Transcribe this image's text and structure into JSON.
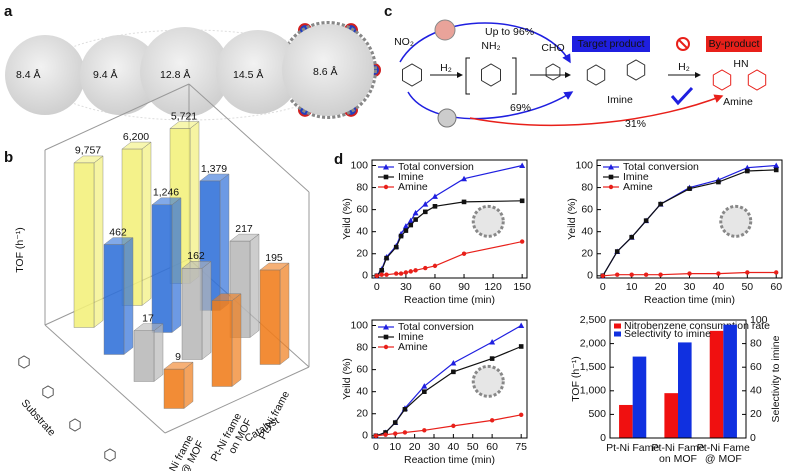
{
  "panel_labels": [
    "a",
    "b",
    "c",
    "d"
  ],
  "panel_a": {
    "sizes": [
      "8.4 Å",
      "9.4 Å",
      "12.8 Å",
      "14.5 Å",
      "8.6 Å"
    ]
  },
  "panel_c": {
    "yield_top": "Up to 96%",
    "target_label": "Target product",
    "byproduct_label": "By-product",
    "reagent_1": "H₂",
    "reagent_2": "H₂",
    "imine": "Imine",
    "amine": "Amine",
    "yield_imine": "69%",
    "yield_amine": "31%",
    "nitro": "NO₂",
    "amino": "NH₂",
    "aldehyde": "CHO",
    "amine_group": "HN"
  },
  "chart_data": [
    {
      "type": "bar3d",
      "ylabel": "TOF (h⁻¹)",
      "xlabel": "Catalyst",
      "zlabel": "Substrate",
      "log_scale": true,
      "ylim": [
        1,
        10000
      ],
      "categories": [
        [
          "Pt-Ni frame",
          "@ MOF"
        ],
        [
          "Pt-Ni frame",
          "on MOF"
        ],
        [
          "Pt-Ni frame"
        ]
      ],
      "category_highlight_color": "#e8201a",
      "series": [
        {
          "color": "#f2f07a",
          "label_color": "#b8b83a",
          "values": [
            9757,
            6200,
            5721
          ],
          "value_labels": [
            "9,757",
            "6,200",
            "5,721"
          ]
        },
        {
          "color": "#2f6fd8",
          "label_color": "#2a9be0",
          "values": [
            462,
            1246,
            1379
          ],
          "value_labels": [
            "462",
            "1,246",
            "1,379"
          ]
        },
        {
          "color": "#b8b8b8",
          "label_color": "#111111",
          "values": [
            17,
            162,
            217
          ]
        },
        {
          "color": "#f07c1a",
          "label_color": "#f07c1a",
          "values": [
            9,
            120,
            195
          ],
          "value_labels": [
            "9",
            null,
            "195"
          ]
        }
      ]
    },
    {
      "type": "line",
      "xlabel": "Reaction time (min)",
      "ylabel": "Yeild (%)",
      "x": [
        0,
        5,
        10,
        20,
        25,
        30,
        35,
        40,
        50,
        60,
        90,
        150
      ],
      "xlim": [
        -5,
        155
      ],
      "xticks": [
        0,
        30,
        60,
        90,
        120,
        150
      ],
      "ylim": [
        -2,
        105
      ],
      "yticks": [
        0,
        20,
        40,
        60,
        80,
        100
      ],
      "last_xtick_color": "#e8201a",
      "series": [
        {
          "name": "Total conversion",
          "color": "#1f1fe0",
          "marker": "triangle",
          "values": [
            0,
            6,
            17,
            27,
            38,
            45,
            50,
            57,
            65,
            72,
            88,
            100
          ]
        },
        {
          "name": "Imine",
          "color": "#111111",
          "marker": "square",
          "values": [
            0,
            5,
            16,
            26,
            36,
            41,
            46,
            51,
            58,
            63,
            67,
            68
          ]
        },
        {
          "name": "Amine",
          "color": "#e8201a",
          "marker": "circle",
          "values": [
            0,
            1,
            1,
            2,
            2,
            3,
            4,
            5,
            7,
            9,
            20,
            31
          ]
        }
      ]
    },
    {
      "type": "line",
      "xlabel": "Reaction time (min)",
      "ylabel": "Yeild (%)",
      "x": [
        0,
        5,
        10,
        15,
        20,
        30,
        40,
        50,
        60
      ],
      "xlim": [
        -2,
        62
      ],
      "xticks": [
        0,
        10,
        20,
        30,
        40,
        50,
        60
      ],
      "ylim": [
        -2,
        105
      ],
      "yticks": [
        0,
        20,
        40,
        60,
        80,
        100
      ],
      "last_xtick_color": "#e8201a",
      "series": [
        {
          "name": "Total conversion",
          "color": "#1f1fe0",
          "marker": "triangle",
          "values": [
            0,
            22,
            35,
            50,
            65,
            80,
            87,
            98,
            100
          ]
        },
        {
          "name": "Imine",
          "color": "#111111",
          "marker": "square",
          "values": [
            0,
            22,
            35,
            50,
            65,
            79,
            85,
            95,
            96
          ]
        },
        {
          "name": "Amine",
          "color": "#e8201a",
          "marker": "circle",
          "values": [
            0,
            1,
            1,
            1,
            1,
            2,
            2,
            3,
            3
          ]
        }
      ]
    },
    {
      "type": "line",
      "xlabel": "Reaction time (min)",
      "ylabel": "Yeild (%)",
      "x": [
        0,
        5,
        10,
        15,
        25,
        40,
        60,
        75
      ],
      "xlim": [
        -2,
        78
      ],
      "xticks": [
        0,
        10,
        20,
        30,
        40,
        50,
        60,
        75
      ],
      "ylim": [
        -2,
        105
      ],
      "yticks": [
        0,
        20,
        40,
        60,
        80,
        100
      ],
      "last_xtick_color": "#e8201a",
      "series": [
        {
          "name": "Total conversion",
          "color": "#1f1fe0",
          "marker": "triangle",
          "values": [
            0,
            3,
            12,
            25,
            45,
            66,
            85,
            100
          ]
        },
        {
          "name": "Imine",
          "color": "#111111",
          "marker": "square",
          "values": [
            0,
            3,
            12,
            24,
            40,
            58,
            70,
            81
          ]
        },
        {
          "name": "Amine",
          "color": "#e8201a",
          "marker": "circle",
          "values": [
            0,
            1,
            2,
            3,
            5,
            9,
            14,
            19
          ]
        }
      ]
    },
    {
      "type": "bar",
      "ylabel": "TOF (h⁻¹)",
      "ylabel_color": "#e8201a",
      "y2label": "Selectivity to imine",
      "y2label_color": "#1f1fe0",
      "categories": [
        [
          "Pt-Ni Fame"
        ],
        [
          "Pt-Ni Fame",
          "on MOF"
        ],
        [
          "Pt-Ni Fame",
          "@ MOF"
        ]
      ],
      "category_highlight_color": "#e8201a",
      "ylim": [
        0,
        2500
      ],
      "yticks": [
        0,
        500,
        {
          "value": 1000,
          "label": "1,000"
        },
        {
          "value": 1500,
          "label": "1,500"
        },
        {
          "value": 2000,
          "label": "2,000"
        },
        {
          "value": 2500,
          "label": "2,500"
        }
      ],
      "y2lim": [
        0,
        100
      ],
      "y2ticks": [
        0,
        20,
        40,
        60,
        80,
        100
      ],
      "series": [
        {
          "name": "Nitrobenzene consumption rate",
          "color": "#f01010",
          "values": [
            700,
            950,
            2270
          ]
        },
        {
          "name": "Selectivity to imine",
          "color": "#1030e0",
          "axis": "y2",
          "values": [
            69,
            81,
            96
          ]
        }
      ]
    }
  ]
}
